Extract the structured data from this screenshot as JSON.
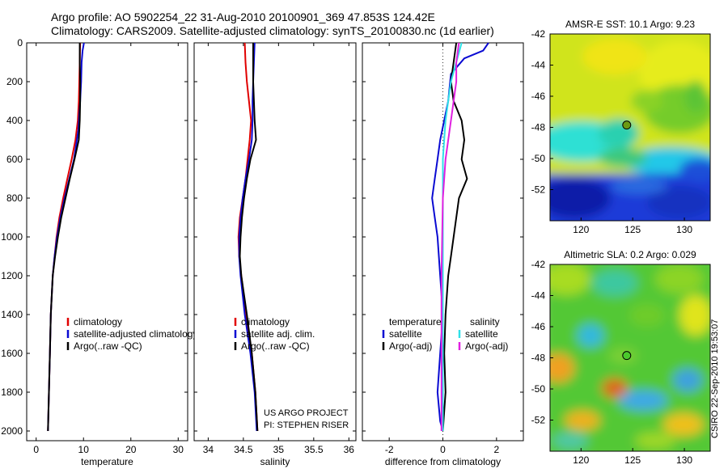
{
  "header": {
    "line1": "Argo profile: AO 5902254_22 31-Aug-2010 20100901_369 47.853S 124.42E",
    "line2": "Climatology: CARS2009. Satellite-adjusted climatology: synTS_20100830.nc (1d earlier)"
  },
  "credits": {
    "project": "US ARGO PROJECT",
    "pi": "PI: STEPHEN RISER",
    "stamp": "CSIRO 22-Sep-2010 19:53:07"
  },
  "colors": {
    "red": "#e00000",
    "blue": "#0a0ad2",
    "black": "#000000",
    "cyan": "#30e0e8",
    "magenta": "#e020e0"
  },
  "chart_data": [
    {
      "type": "line",
      "id": "temperature",
      "xlabel": "temperature",
      "xlim": [
        -2,
        32
      ],
      "ylim": [
        2050,
        0
      ],
      "xticks": [
        0,
        10,
        20,
        30
      ],
      "yticks": [
        0,
        200,
        400,
        600,
        800,
        1000,
        1200,
        1400,
        1600,
        1800,
        2000
      ],
      "legend": [
        "climatology",
        "satellite-adjusted climatology",
        "Argo(..raw -QC)"
      ],
      "series": [
        {
          "name": "climatology",
          "color": "red",
          "x": [
            9.3,
            9.2,
            9.1,
            9.0,
            8.8,
            8.3,
            7.5,
            6.6,
            5.7,
            4.9,
            4.3,
            3.9,
            3.5,
            3.1,
            2.9,
            2.7,
            2.5
          ],
          "y": [
            0,
            100,
            200,
            300,
            400,
            500,
            600,
            700,
            800,
            900,
            1000,
            1100,
            1200,
            1400,
            1600,
            1800,
            2000
          ]
        },
        {
          "name": "satellite-adjusted climatology",
          "color": "blue",
          "x": [
            10.1,
            9.8,
            9.6,
            9.5,
            9.3,
            8.9,
            8.0,
            7.0,
            6.0,
            5.1,
            4.4,
            3.9,
            3.5,
            3.1,
            2.9,
            2.7,
            2.5
          ],
          "y": [
            0,
            40,
            100,
            200,
            300,
            450,
            600,
            700,
            800,
            900,
            1000,
            1100,
            1200,
            1400,
            1600,
            1800,
            2000
          ]
        },
        {
          "name": "Argo(..raw -QC)",
          "color": "black",
          "x": [
            9.2,
            9.2,
            9.3,
            9.3,
            9.2,
            9.0,
            8.1,
            7.1,
            6.2,
            5.3,
            4.6,
            4.0,
            3.5,
            3.1,
            2.9,
            2.7,
            2.5
          ],
          "y": [
            0,
            100,
            200,
            300,
            400,
            500,
            600,
            700,
            800,
            900,
            1000,
            1100,
            1200,
            1400,
            1600,
            1800,
            2000
          ]
        }
      ]
    },
    {
      "type": "line",
      "id": "salinity",
      "xlabel": "salinity",
      "xlim": [
        33.8,
        36.1
      ],
      "ylim": [
        2050,
        0
      ],
      "xticks": [
        34,
        34.5,
        35,
        35.5,
        36
      ],
      "legend": [
        "climatology",
        "satellite adj. clim.",
        "Argo(..raw -QC)"
      ],
      "series": [
        {
          "name": "climatology",
          "color": "red",
          "x": [
            34.52,
            34.53,
            34.55,
            34.58,
            34.61,
            34.59,
            34.56,
            34.53,
            34.49,
            34.45,
            34.43,
            34.44,
            34.47,
            34.54,
            34.62,
            34.67,
            34.7
          ],
          "y": [
            0,
            100,
            200,
            300,
            400,
            500,
            600,
            700,
            800,
            900,
            1000,
            1100,
            1200,
            1400,
            1600,
            1800,
            2000
          ]
        },
        {
          "name": "satellite adj. clim.",
          "color": "blue",
          "x": [
            34.66,
            34.65,
            34.64,
            34.63,
            34.63,
            34.62,
            34.58,
            34.53,
            34.49,
            34.46,
            34.44,
            34.44,
            34.46,
            34.52,
            34.6,
            34.66,
            34.69
          ],
          "y": [
            0,
            100,
            200,
            300,
            400,
            500,
            600,
            700,
            800,
            900,
            1000,
            1100,
            1200,
            1400,
            1600,
            1800,
            2000
          ]
        },
        {
          "name": "Argo(..raw -QC)",
          "color": "black",
          "x": [
            34.64,
            34.64,
            34.64,
            34.65,
            34.66,
            34.68,
            34.6,
            34.55,
            34.51,
            34.48,
            34.46,
            34.45,
            34.47,
            34.55,
            34.62,
            34.67,
            34.7
          ],
          "y": [
            0,
            100,
            200,
            300,
            400,
            500,
            600,
            700,
            800,
            900,
            1000,
            1100,
            1200,
            1400,
            1600,
            1800,
            2000
          ]
        }
      ]
    },
    {
      "type": "line",
      "id": "difference",
      "xlabel": "difference from climatology",
      "xlim": [
        -3,
        3
      ],
      "ylim": [
        2050,
        0
      ],
      "xticks": [
        -2,
        0,
        2
      ],
      "legend_left_title": "temperature",
      "legend_right_title": "salinity",
      "legend": [
        "satellite",
        "Argo(-adj)",
        "satellite",
        "Argo(-adj)"
      ],
      "series": [
        {
          "name": "satellite",
          "group": "temperature",
          "color": "blue",
          "x": [
            1.7,
            1.5,
            0.8,
            0.3,
            0.2,
            -0.1,
            -0.2,
            -0.3,
            -0.4,
            -0.3,
            -0.2,
            -0.1,
            0.0,
            -0.1,
            -0.2,
            -0.1,
            0.0
          ],
          "y": [
            0,
            40,
            80,
            160,
            300,
            500,
            600,
            700,
            800,
            900,
            1000,
            1200,
            1400,
            1600,
            1800,
            1950,
            2000
          ]
        },
        {
          "name": "Argo(-adj)",
          "group": "temperature",
          "color": "black",
          "x": [
            0.5,
            0.4,
            0.3,
            0.4,
            0.7,
            0.8,
            0.7,
            0.9,
            0.6,
            0.5,
            0.4,
            0.3,
            0.2,
            0.1,
            0.05,
            0.1,
            0.0
          ],
          "y": [
            0,
            100,
            200,
            300,
            400,
            500,
            600,
            700,
            800,
            900,
            1000,
            1100,
            1200,
            1400,
            1600,
            1800,
            2000
          ]
        },
        {
          "name": "satellite",
          "group": "salinity",
          "color": "cyan",
          "x": [
            0.7,
            0.5,
            0.3,
            0.2,
            0.1,
            0.0,
            0.0,
            0.0,
            0.0,
            0.0
          ],
          "y": [
            0,
            100,
            200,
            300,
            400,
            600,
            800,
            1200,
            1600,
            2000
          ]
        },
        {
          "name": "Argo(-adj)",
          "group": "salinity",
          "color": "magenta",
          "x": [
            0.6,
            0.5,
            0.5,
            0.4,
            0.3,
            0.1,
            0.0,
            -0.05,
            -0.05,
            -0.05
          ],
          "y": [
            0,
            100,
            200,
            300,
            400,
            600,
            800,
            1200,
            1600,
            2000
          ]
        }
      ]
    },
    {
      "type": "heatmap",
      "id": "sst_map",
      "title": "AMSR-E SST: 10.1 Argo: 9.23",
      "xlim": [
        117,
        132.5
      ],
      "ylim": [
        -54,
        -42
      ],
      "xticks": [
        120,
        125,
        130
      ],
      "yticks": [
        -42,
        -44,
        -46,
        -48,
        -50,
        -52
      ],
      "marker": {
        "lon": 124.42,
        "lat": -47.853,
        "fill": "#6c9a14"
      }
    },
    {
      "type": "heatmap",
      "id": "sla_map",
      "title": "Altimetric SLA: 0.2 Argo: 0.029",
      "xlim": [
        117,
        132.5
      ],
      "ylim": [
        -54,
        -42
      ],
      "xticks": [
        120,
        125,
        130
      ],
      "yticks": [
        -42,
        -44,
        -46,
        -48,
        -50,
        -52
      ],
      "marker": {
        "lon": 124.42,
        "lat": -47.853,
        "fill": "#4ac82c"
      }
    }
  ]
}
